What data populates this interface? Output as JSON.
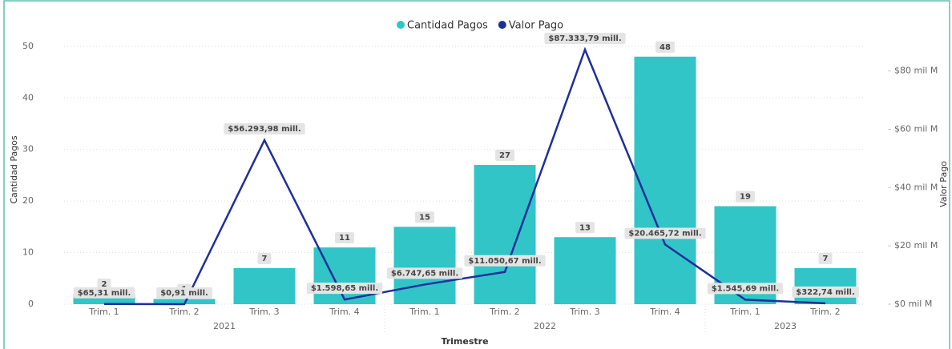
{
  "chart_data": {
    "type": "bar_line",
    "xlabel": "Trimestre",
    "ylabel": "Cantidad Pagos",
    "y2label": "Valor Pago",
    "categories": [
      "Trim. 1",
      "Trim. 2",
      "Trim. 3",
      "Trim. 4",
      "Trim. 1",
      "Trim. 2",
      "Trim. 3",
      "Trim. 4",
      "Trim. 1",
      "Trim. 2"
    ],
    "years": [
      "2021",
      "2021",
      "2021",
      "2021",
      "2022",
      "2022",
      "2022",
      "2022",
      "2023",
      "2023"
    ],
    "series": [
      {
        "name": "Cantidad Pagos",
        "type": "bar",
        "color": "#31c5c7",
        "values": [
          2,
          1,
          7,
          11,
          15,
          27,
          13,
          48,
          19,
          7
        ]
      },
      {
        "name": "Valor Pago",
        "type": "line",
        "axis": "y2",
        "color": "#1f2f9a",
        "values": [
          65.31,
          0.91,
          56293.98,
          1598.65,
          6747.65,
          11050.67,
          87333.79,
          20465.72,
          1545.69,
          322.74
        ],
        "value_labels": [
          "$65,31 mill.",
          "$0,91 mill.",
          "$56.293,98 mill.",
          "$1.598,65 mill.",
          "$6.747,65 mill.",
          "$11.050,67 mill.",
          "$87.333,79 mill.",
          "$20.465,72 mill.",
          "$1.545,69 mill.",
          "$322,74 mill."
        ]
      }
    ],
    "ylim": [
      0,
      52
    ],
    "yticks": [
      0,
      10,
      20,
      30,
      40,
      50
    ],
    "y2lim": [
      0,
      92000
    ],
    "y2ticks": [
      {
        "value": 0,
        "label": "$0 mil M"
      },
      {
        "value": 20000,
        "label": "$20 mil M"
      },
      {
        "value": 40000,
        "label": "$40 mil M"
      },
      {
        "value": 60000,
        "label": "$60 mil M"
      },
      {
        "value": 80000,
        "label": "$80 mil M"
      }
    ],
    "grid": true,
    "legend": "top"
  }
}
